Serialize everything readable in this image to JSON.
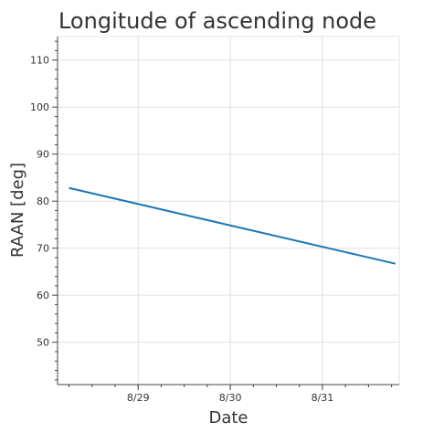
{
  "chart_data": {
    "type": "line",
    "title": "Longitude of ascending node",
    "xlabel": "Date",
    "ylabel": "RAAN [deg]",
    "x_type": "datetime",
    "x_ticks": [
      "8/29",
      "8/30",
      "8/31"
    ],
    "y_ticks": [
      50,
      60,
      70,
      80,
      90,
      100,
      110
    ],
    "ylim": [
      41,
      115
    ],
    "grid": true,
    "legend": "none",
    "line_color": "#1f77b4",
    "series": [
      {
        "x": [
          "2023-08-28T06:00",
          "2023-08-31T19:00"
        ],
        "values": [
          82.8,
          66.7
        ]
      }
    ]
  }
}
